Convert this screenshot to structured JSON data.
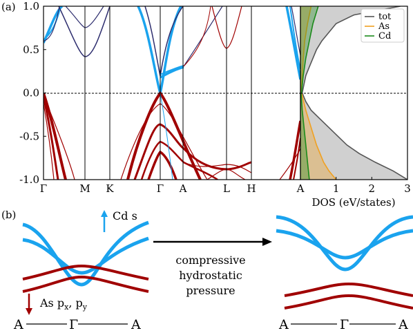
{
  "panel_a": {
    "tag": "(a)",
    "chart_data": {
      "type": "line",
      "subplots": [
        {
          "name": "band-structure",
          "ylabel": "",
          "ylim": [
            -1.0,
            1.0
          ],
          "yticks": [
            "1.0",
            "0.5",
            "0.0",
            "-0.5",
            "-1.0"
          ],
          "ytick_values": [
            1.0,
            0.5,
            0.0,
            -0.5,
            -1.0
          ],
          "kpoints": [
            "Γ",
            "M",
            "K",
            "Γ",
            "A",
            "L",
            "H",
            "A"
          ],
          "fermi_level": 0.0,
          "colors": {
            "conduction": "#1aa3ee",
            "valence": "#a00000",
            "bands": "#2d2d6e"
          }
        },
        {
          "name": "dos",
          "xlabel": "DOS (eV/states)",
          "xlim": [
            0,
            3
          ],
          "xticks": [
            "0",
            "1",
            "2",
            "3"
          ],
          "legend_position": "top-right",
          "series": [
            {
              "name": "tot",
              "color": "#555555",
              "conduction": {
                "E": [
                  0.0,
                  0.1,
                  0.2,
                  0.3,
                  0.4,
                  0.5,
                  0.6,
                  0.7,
                  0.8,
                  0.9,
                  1.0
                ],
                "dos": [
                  0.05,
                  0.1,
                  0.15,
                  0.25,
                  0.35,
                  0.45,
                  0.6,
                  0.8,
                  1.0,
                  1.5,
                  2.8
                ]
              },
              "valence": {
                "E": [
                  0.0,
                  -0.1,
                  -0.2,
                  -0.3,
                  -0.4,
                  -0.5,
                  -0.6,
                  -0.7,
                  -0.8,
                  -0.9,
                  -1.0
                ],
                "dos": [
                  0.05,
                  0.15,
                  0.3,
                  0.55,
                  0.8,
                  1.05,
                  1.3,
                  1.65,
                  2.1,
                  2.6,
                  3.0
                ]
              }
            },
            {
              "name": "As",
              "color": "#f0a020",
              "conduction": {
                "E": [
                  0.0,
                  0.2,
                  0.4,
                  0.6,
                  0.8,
                  1.0
                ],
                "dos": [
                  0.02,
                  0.05,
                  0.08,
                  0.12,
                  0.2,
                  0.3
                ]
              },
              "valence": {
                "E": [
                  0.0,
                  -0.2,
                  -0.4,
                  -0.6,
                  -0.8,
                  -0.9,
                  -1.0
                ],
                "dos": [
                  0.03,
                  0.15,
                  0.3,
                  0.45,
                  0.65,
                  0.8,
                  1.0
                ]
              }
            },
            {
              "name": "Cd",
              "color": "#1a8a1a",
              "conduction": {
                "E": [
                  0.0,
                  0.2,
                  0.4,
                  0.6,
                  0.8,
                  1.0
                ],
                "dos": [
                  0.03,
                  0.08,
                  0.15,
                  0.25,
                  0.35,
                  0.5
                ]
              },
              "valence": {
                "E": [
                  0.0,
                  -0.2,
                  -0.4,
                  -0.6,
                  -0.8,
                  -1.0
                ],
                "dos": [
                  0.02,
                  0.05,
                  0.1,
                  0.15,
                  0.2,
                  0.25
                ]
              }
            }
          ]
        }
      ]
    }
  },
  "panel_b": {
    "tag": "(b)",
    "cd_label": "Cd s",
    "as_label_main": "As p",
    "as_sub_x": "x",
    "as_sep": ", p",
    "as_sub_y": "y",
    "path_left": "A",
    "path_mid": "Γ",
    "path_right": "A",
    "arrow_text": [
      "compressive",
      "hydrostatic",
      "pressure"
    ],
    "colors": {
      "cd": "#1aa3ee",
      "as": "#a00000"
    }
  }
}
